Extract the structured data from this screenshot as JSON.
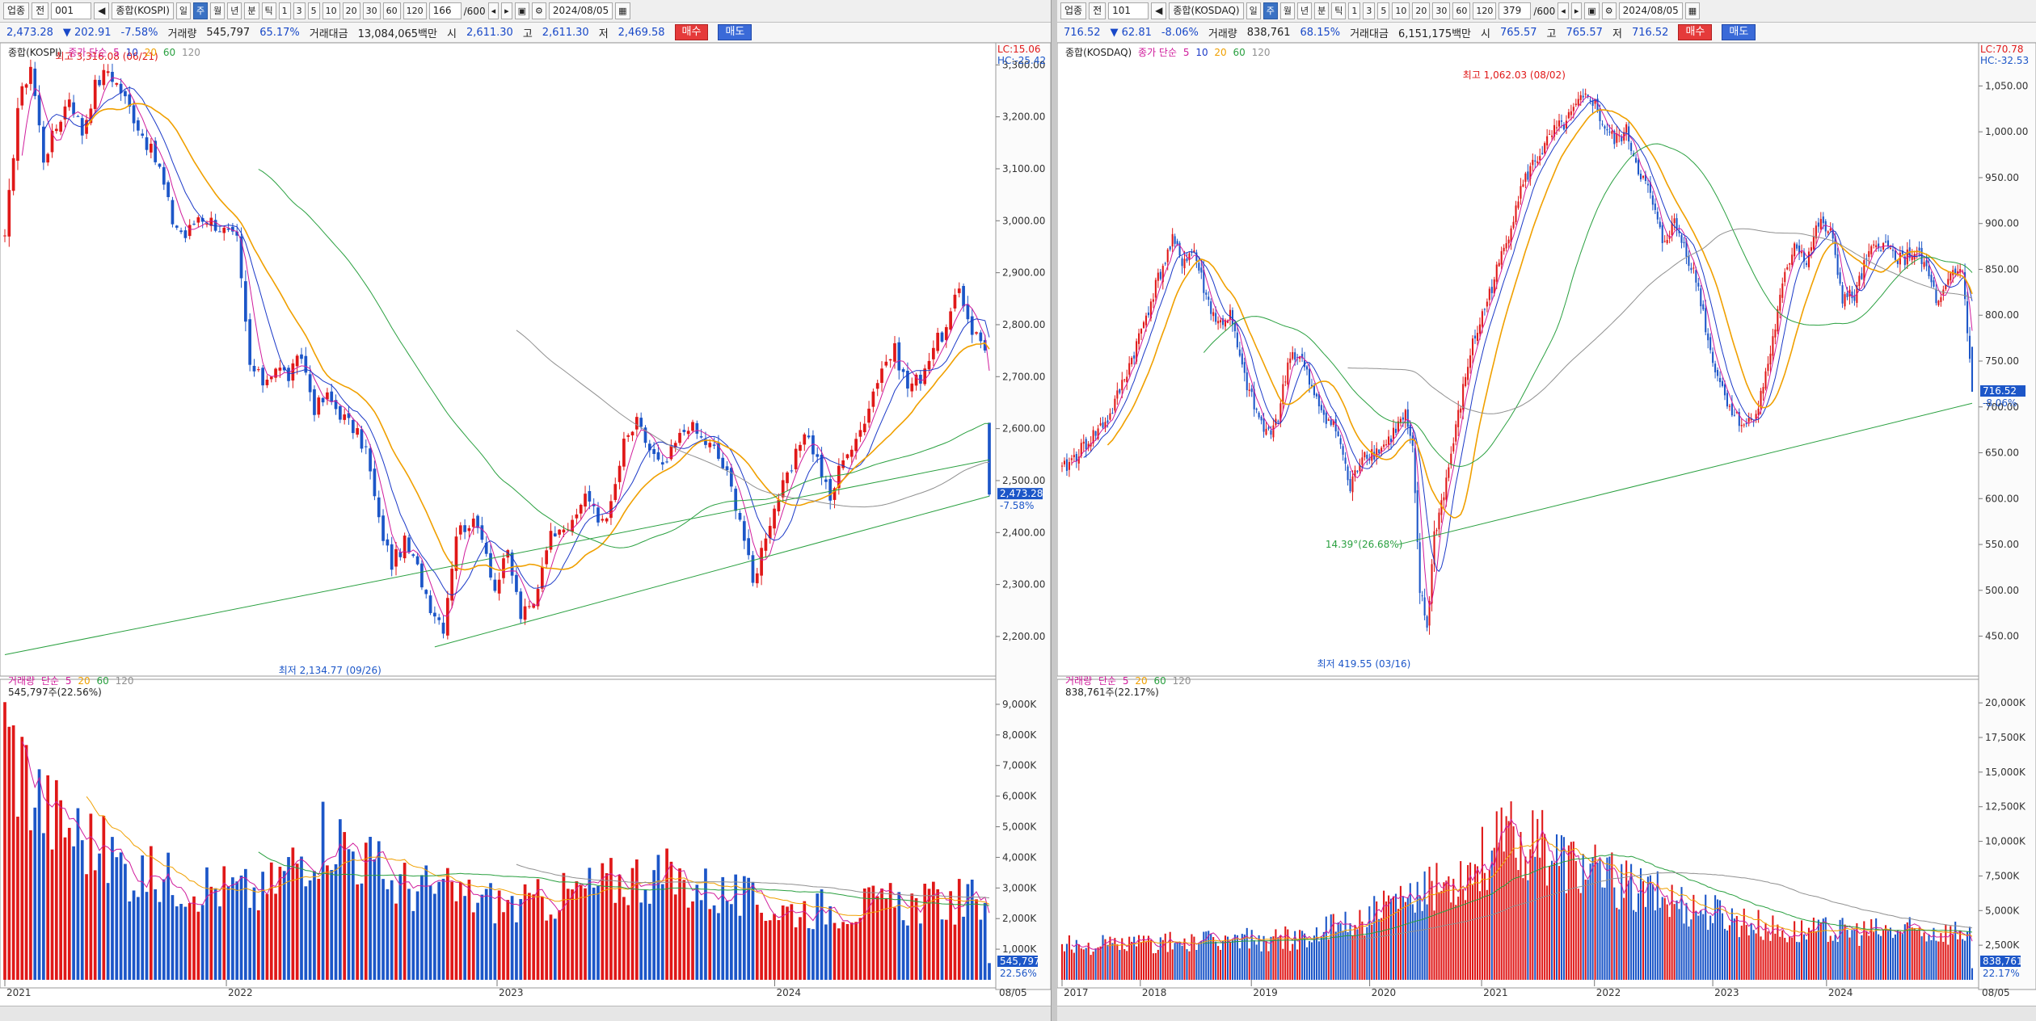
{
  "left": {
    "toolbar": {
      "market": "업종",
      "period_label": "전",
      "code": "001",
      "name": "종합(KOSPI)",
      "tf": [
        "일",
        "주",
        "월",
        "년",
        "분",
        "틱"
      ],
      "tf_selected": "주",
      "minutes": [
        "1",
        "3",
        "5",
        "10",
        "20",
        "30",
        "60",
        "120"
      ],
      "count": "166",
      "count_total": "/600",
      "date": "2024/08/05"
    },
    "info": {
      "price": "2,473.28",
      "change": "202.91",
      "change_pct": "-7.58%",
      "vol_label": "거래량",
      "volume": "545,797",
      "vol_ratio": "65.17%",
      "amt_label": "거래대금",
      "amount": "13,084,065백만",
      "open_label": "시",
      "open": "2,611.30",
      "high_label": "고",
      "high": "2,611.30",
      "low_label": "저",
      "low": "2,469.58",
      "buy": "매수",
      "sell": "매도"
    },
    "price_legend": {
      "name": "종합(KOSPI)",
      "ma_label": "종가 단순",
      "periods": [
        "5",
        "10",
        "20",
        "60",
        "120"
      ]
    },
    "vol_legend": {
      "name": "거래량",
      "ma_label": "단순",
      "periods": [
        "5",
        "20",
        "60",
        "120"
      ],
      "value": "545,797주(22.56%)"
    },
    "lc": "LC:15.06",
    "hc": "HC:-25.42",
    "high_note": "최고 3,316.08 (06/21)",
    "low_note": "최저 2,134.77 (09/26)",
    "price_tag": "2,473.28",
    "pct_tag": "-7.58%",
    "vol_tag": "545,797",
    "vol_pct_tag": "22.56%",
    "price_ticks": [
      "3,300.00",
      "3,200.00",
      "3,100.00",
      "3,000.00",
      "2,900.00",
      "2,800.00",
      "2,700.00",
      "2,600.00",
      "2,500.00",
      "2,400.00",
      "2,300.00",
      "2,200.00"
    ],
    "vol_ticks": [
      "9,000K",
      "8,000K",
      "7,000K",
      "6,000K",
      "5,000K",
      "4,000K",
      "3,000K",
      "2,000K",
      "1,000K"
    ],
    "years": [
      "2021",
      "2022",
      "2023",
      "2024"
    ],
    "end_date": "08/05"
  },
  "right": {
    "toolbar": {
      "market": "업종",
      "period_label": "전",
      "code": "101",
      "name": "종합(KOSDAQ)",
      "tf": [
        "일",
        "주",
        "월",
        "년",
        "분",
        "틱"
      ],
      "tf_selected": "주",
      "minutes": [
        "1",
        "3",
        "5",
        "10",
        "20",
        "30",
        "60",
        "120"
      ],
      "count": "379",
      "count_total": "/600",
      "date": "2024/08/05"
    },
    "info": {
      "price": "716.52",
      "change": "62.81",
      "change_pct": "-8.06%",
      "vol_label": "거래량",
      "volume": "838,761",
      "vol_ratio": "68.15%",
      "amt_label": "거래대금",
      "amount": "6,151,175백만",
      "open_label": "시",
      "open": "765.57",
      "high_label": "고",
      "high": "765.57",
      "low_label": "저",
      "low": "716.52",
      "buy": "매수",
      "sell": "매도"
    },
    "price_legend": {
      "name": "종합(KOSDAQ)",
      "ma_label": "종가 단순",
      "periods": [
        "5",
        "10",
        "20",
        "60",
        "120"
      ]
    },
    "vol_legend": {
      "name": "거래량",
      "ma_label": "단순",
      "periods": [
        "5",
        "20",
        "60",
        "120"
      ],
      "value": "838,761주(22.17%)"
    },
    "lc": "LC:70.78",
    "hc": "HC:-32.53",
    "high_note": "최고 1,062.03 (08/02)",
    "low_note": "최저 419.55 (03/16)",
    "trend_note": "14.39°(26.68%)",
    "price_tag": "716.52",
    "pct_tag": "-8.06%",
    "vol_tag": "838,761",
    "vol_pct_tag": "22.17%",
    "price_ticks": [
      "1,050.00",
      "1,000.00",
      "950.00",
      "900.00",
      "850.00",
      "800.00",
      "750.00",
      "700.00",
      "650.00",
      "600.00",
      "550.00",
      "500.00",
      "450.00"
    ],
    "vol_ticks": [
      "20,000K",
      "17,500K",
      "15,000K",
      "12,500K",
      "10,000K",
      "7,500K",
      "5,000K",
      "2,500K"
    ],
    "years": [
      "2017",
      "2018",
      "2019",
      "2020",
      "2021",
      "2022",
      "2023",
      "2024"
    ],
    "end_date": "08/05"
  },
  "colors": {
    "up": "#e01818",
    "down": "#1c56c8",
    "ma5": "#d01c9c",
    "ma10": "#1c3ac8",
    "ma20": "#f0a000",
    "ma60": "#2aa040",
    "ma120": "#909090",
    "trend": "#2aa040",
    "accent": "#1c56c8"
  },
  "chart_data": [
    {
      "type": "candlestick",
      "title": "종합(KOSPI)",
      "interval": "weekly",
      "ylim": [
        2130,
        3330
      ],
      "vol_ylim": [
        0,
        9500
      ],
      "x_start": "2021-01-04",
      "x_end": "2024-08-05",
      "close_path": [
        [
          0,
          2960
        ],
        [
          3,
          3220
        ],
        [
          6,
          3300
        ],
        [
          9,
          3120
        ],
        [
          12,
          3180
        ],
        [
          15,
          3240
        ],
        [
          18,
          3170
        ],
        [
          21,
          3260
        ],
        [
          24,
          3290
        ],
        [
          27,
          3250
        ],
        [
          30,
          3200
        ],
        [
          33,
          3150
        ],
        [
          36,
          3100
        ],
        [
          39,
          3000
        ],
        [
          42,
          2970
        ],
        [
          45,
          3010
        ],
        [
          48,
          3000
        ],
        [
          51,
          2980
        ],
        [
          54,
          2960
        ],
        [
          57,
          2720
        ],
        [
          60,
          2690
        ],
        [
          63,
          2720
        ],
        [
          66,
          2700
        ],
        [
          69,
          2740
        ],
        [
          72,
          2640
        ],
        [
          75,
          2660
        ],
        [
          78,
          2630
        ],
        [
          81,
          2600
        ],
        [
          84,
          2560
        ],
        [
          87,
          2420
        ],
        [
          90,
          2340
        ],
        [
          93,
          2380
        ],
        [
          96,
          2330
        ],
        [
          99,
          2260
        ],
        [
          102,
          2220
        ],
        [
          105,
          2400
        ],
        [
          108,
          2420
        ],
        [
          111,
          2400
        ],
        [
          114,
          2290
        ],
        [
          117,
          2360
        ],
        [
          120,
          2240
        ],
        [
          123,
          2260
        ],
        [
          126,
          2380
        ],
        [
          129,
          2420
        ],
        [
          132,
          2410
        ],
        [
          135,
          2480
        ],
        [
          138,
          2420
        ],
        [
          141,
          2450
        ],
        [
          144,
          2570
        ],
        [
          147,
          2610
        ],
        [
          150,
          2560
        ],
        [
          153,
          2520
        ],
        [
          156,
          2570
        ],
        [
          159,
          2610
        ],
        [
          162,
          2580
        ],
        [
          165,
          2560
        ],
        [
          168,
          2510
        ],
        [
          171,
          2430
        ],
        [
          174,
          2300
        ],
        [
          177,
          2400
        ],
        [
          180,
          2470
        ],
        [
          183,
          2520
        ],
        [
          186,
          2600
        ],
        [
          189,
          2540
        ],
        [
          192,
          2460
        ],
        [
          195,
          2550
        ],
        [
          198,
          2570
        ],
        [
          201,
          2650
        ],
        [
          204,
          2720
        ],
        [
          207,
          2750
        ],
        [
          210,
          2680
        ],
        [
          213,
          2700
        ],
        [
          216,
          2760
        ],
        [
          219,
          2790
        ],
        [
          222,
          2870
        ],
        [
          225,
          2790
        ],
        [
          228,
          2760
        ],
        [
          229,
          2473
        ]
      ],
      "final_candle": {
        "open": 2611.3,
        "high": 2611.3,
        "low": 2469.58,
        "close": 2473.28
      },
      "high_point": {
        "value": 3316.08,
        "date": "06/21"
      },
      "low_point": {
        "value": 2134.77,
        "date": "09/26"
      },
      "series": [
        "close",
        "ma5",
        "ma10",
        "ma20",
        "ma60",
        "ma120"
      ],
      "volume_last": 545797
    },
    {
      "type": "candlestick",
      "title": "종합(KOSDAQ)",
      "interval": "weekly",
      "ylim": [
        410,
        1090
      ],
      "vol_ylim": [
        0,
        21000
      ],
      "x_start": "2017-01-02",
      "x_end": "2024-08-05",
      "close_path": [
        [
          0,
          630
        ],
        [
          10,
          660
        ],
        [
          20,
          690
        ],
        [
          30,
          760
        ],
        [
          40,
          840
        ],
        [
          46,
          880
        ],
        [
          50,
          860
        ],
        [
          55,
          870
        ],
        [
          60,
          820
        ],
        [
          65,
          790
        ],
        [
          70,
          800
        ],
        [
          75,
          740
        ],
        [
          80,
          700
        ],
        [
          85,
          670
        ],
        [
          90,
          690
        ],
        [
          95,
          760
        ],
        [
          100,
          750
        ],
        [
          105,
          710
        ],
        [
          110,
          690
        ],
        [
          115,
          670
        ],
        [
          120,
          610
        ],
        [
          125,
          650
        ],
        [
          130,
          650
        ],
        [
          135,
          660
        ],
        [
          140,
          680
        ],
        [
          143,
          690
        ],
        [
          146,
          650
        ],
        [
          149,
          500
        ],
        [
          152,
          460
        ],
        [
          155,
          560
        ],
        [
          160,
          620
        ],
        [
          165,
          690
        ],
        [
          170,
          760
        ],
        [
          175,
          800
        ],
        [
          180,
          840
        ],
        [
          185,
          880
        ],
        [
          190,
          930
        ],
        [
          195,
          960
        ],
        [
          200,
          980
        ],
        [
          205,
          1000
        ],
        [
          210,
          1010
        ],
        [
          215,
          1030
        ],
        [
          220,
          1040
        ],
        [
          225,
          1010
        ],
        [
          230,
          990
        ],
        [
          235,
          1000
        ],
        [
          240,
          960
        ],
        [
          245,
          930
        ],
        [
          250,
          880
        ],
        [
          255,
          900
        ],
        [
          260,
          870
        ],
        [
          265,
          830
        ],
        [
          270,
          760
        ],
        [
          275,
          720
        ],
        [
          280,
          690
        ],
        [
          285,
          680
        ],
        [
          290,
          700
        ],
        [
          295,
          760
        ],
        [
          300,
          830
        ],
        [
          305,
          880
        ],
        [
          310,
          860
        ],
        [
          315,
          900
        ],
        [
          320,
          890
        ],
        [
          325,
          820
        ],
        [
          330,
          820
        ],
        [
          335,
          860
        ],
        [
          340,
          880
        ],
        [
          345,
          870
        ],
        [
          350,
          860
        ],
        [
          355,
          870
        ],
        [
          360,
          850
        ],
        [
          365,
          810
        ],
        [
          370,
          840
        ],
        [
          375,
          850
        ],
        [
          379,
          716
        ]
      ],
      "final_candle": {
        "open": 765.57,
        "high": 765.57,
        "low": 716.52,
        "close": 716.52
      },
      "high_point": {
        "value": 1062.03,
        "date": "08/02"
      },
      "low_point": {
        "value": 419.55,
        "date": "03/16"
      },
      "series": [
        "close",
        "ma5",
        "ma10",
        "ma20",
        "ma60",
        "ma120"
      ],
      "volume_last": 838761
    }
  ]
}
